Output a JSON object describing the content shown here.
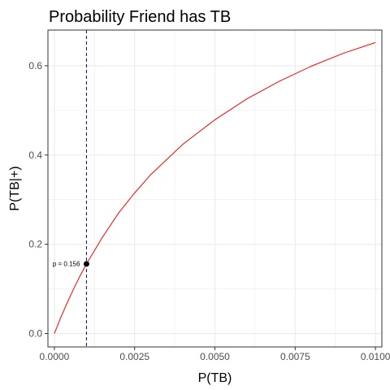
{
  "chart_data": {
    "type": "line",
    "title": "Probability Friend has TB",
    "xlabel": "P(TB)",
    "ylabel": "P(TB|+)",
    "xlim": [
      -0.0002,
      0.0102
    ],
    "ylim": [
      -0.03,
      0.68
    ],
    "x_ticks": [
      0,
      0.0025,
      0.005,
      0.0075,
      0.01
    ],
    "x_tick_labels": [
      "0.0000",
      "0.0025",
      "0.0050",
      "0.0075",
      "0.0100"
    ],
    "y_ticks": [
      0,
      0.2,
      0.4,
      0.6
    ],
    "y_tick_labels": [
      "0.0",
      "0.2",
      "0.4",
      "0.6"
    ],
    "grid": true,
    "series": [
      {
        "color": "#ff0000",
        "x": [
          0,
          0.0001,
          0.0002,
          0.0004,
          0.0006,
          0.0008,
          0.001,
          0.0015,
          0.002,
          0.0025,
          0.003,
          0.004,
          0.005,
          0.006,
          0.007,
          0.008,
          0.009,
          0.01
        ],
        "y": [
          0,
          0.018,
          0.036,
          0.069,
          0.1,
          0.129,
          0.156,
          0.216,
          0.27,
          0.315,
          0.356,
          0.424,
          0.479,
          0.526,
          0.565,
          0.599,
          0.628,
          0.652
        ]
      }
    ],
    "vline": {
      "x": 0.001,
      "color": "#00008b"
    },
    "highlight_point": {
      "x": 0.001,
      "y": 0.156,
      "label": "p = 0.156",
      "color": "#000000"
    }
  }
}
